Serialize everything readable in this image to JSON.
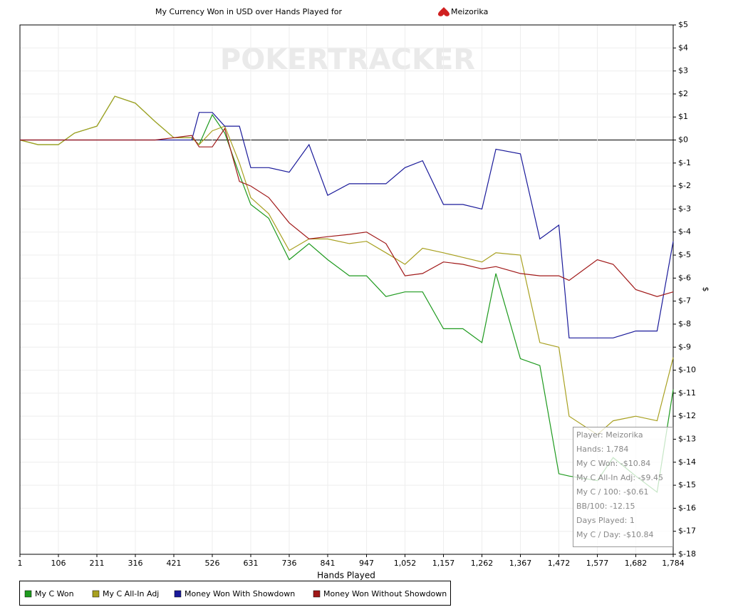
{
  "chart_data": {
    "type": "line",
    "title": "My Currency Won in USD over Hands Played for",
    "title_player": "Meizorika",
    "watermark": "POKERTRACKER",
    "x_label": "Hands Played",
    "y_label": "$",
    "x": [
      1,
      50,
      106,
      150,
      190,
      211,
      260,
      316,
      370,
      421,
      470,
      490,
      526,
      560,
      600,
      631,
      680,
      736,
      790,
      841,
      900,
      947,
      1000,
      1052,
      1100,
      1157,
      1210,
      1262,
      1300,
      1367,
      1420,
      1472,
      1500,
      1577,
      1620,
      1682,
      1740,
      1784
    ],
    "series": [
      {
        "name": "My C Won",
        "color": "#1e9a1e",
        "values": [
          0,
          -0.2,
          -0.2,
          0.3,
          0.5,
          0.6,
          1.9,
          1.6,
          0.8,
          0.1,
          0.1,
          -0.2,
          1.1,
          0.3,
          -1.5,
          -2.8,
          -3.4,
          -5.2,
          -4.5,
          -5.2,
          -5.9,
          -5.9,
          -6.8,
          -6.6,
          -6.6,
          -8.2,
          -8.2,
          -8.8,
          -5.8,
          -9.5,
          -9.8,
          -14.5,
          -14.6,
          -14.8,
          -13.8,
          -14.6,
          -15.3,
          -10.84
        ]
      },
      {
        "name": "My C All-In Adj",
        "color": "#a8a020",
        "values": [
          0,
          -0.2,
          -0.2,
          0.3,
          0.5,
          0.6,
          1.9,
          1.6,
          0.8,
          0.1,
          0.1,
          -0.2,
          0.4,
          0.6,
          -1.0,
          -2.5,
          -3.2,
          -4.8,
          -4.3,
          -4.3,
          -4.5,
          -4.4,
          -4.9,
          -5.4,
          -4.7,
          -4.9,
          -5.1,
          -5.3,
          -4.9,
          -5.0,
          -8.8,
          -9.0,
          -12.0,
          -12.8,
          -12.2,
          -12.0,
          -12.2,
          -9.45
        ]
      },
      {
        "name": "Money Won With Showdown",
        "color": "#1a1a9a",
        "values": [
          0,
          0,
          0,
          0,
          0,
          0,
          0,
          0,
          0,
          0,
          0,
          1.2,
          1.2,
          0.6,
          0.6,
          -1.2,
          -1.2,
          -1.4,
          -0.2,
          -2.4,
          -1.9,
          -1.9,
          -1.9,
          -1.2,
          -0.9,
          -2.8,
          -2.8,
          -3.0,
          -0.4,
          -0.6,
          -4.3,
          -3.7,
          -8.6,
          -8.6,
          -8.6,
          -8.3,
          -8.3,
          -4.4
        ]
      },
      {
        "name": "Money Won Without Showdown",
        "color": "#a01818",
        "values": [
          0,
          0,
          0,
          0,
          0,
          0,
          0,
          0,
          0,
          0.1,
          0.2,
          -0.3,
          -0.3,
          0.5,
          -1.8,
          -2.0,
          -2.5,
          -3.6,
          -4.3,
          -4.2,
          -4.1,
          -4.0,
          -4.5,
          -5.9,
          -5.8,
          -5.3,
          -5.4,
          -5.6,
          -5.5,
          -5.8,
          -5.9,
          -5.9,
          -6.1,
          -5.2,
          -5.4,
          -6.5,
          -6.8,
          -6.6
        ]
      }
    ],
    "xlim": [
      1,
      1784
    ],
    "xticks": [
      1,
      106,
      211,
      316,
      421,
      526,
      631,
      736,
      841,
      947,
      {
        "value": 1052,
        "label": "1,052"
      },
      {
        "value": 1157,
        "label": "1,157"
      },
      {
        "value": 1262,
        "label": "1,262"
      },
      {
        "value": 1367,
        "label": "1,367"
      },
      {
        "value": 1472,
        "label": "1,472"
      },
      {
        "value": 1577,
        "label": "1,577"
      },
      {
        "value": 1682,
        "label": "1,682"
      },
      {
        "value": 1784,
        "label": "1,784"
      }
    ],
    "ylim": [
      -18,
      5
    ],
    "yticks": [
      {
        "value": 5,
        "label": "$5"
      },
      {
        "value": 4,
        "label": "$4"
      },
      {
        "value": 3,
        "label": "$3"
      },
      {
        "value": 2,
        "label": "$2"
      },
      {
        "value": 1,
        "label": "$1"
      },
      {
        "value": 0,
        "label": "$0"
      },
      {
        "value": -1,
        "label": "$-1"
      },
      {
        "value": -2,
        "label": "$-2"
      },
      {
        "value": -3,
        "label": "$-3"
      },
      {
        "value": -4,
        "label": "$-4"
      },
      {
        "value": -5,
        "label": "$-5"
      },
      {
        "value": -6,
        "label": "$-6"
      },
      {
        "value": -7,
        "label": "$-7"
      },
      {
        "value": -8,
        "label": "$-8"
      },
      {
        "value": -9,
        "label": "$-9"
      },
      {
        "value": -10,
        "label": "$-10"
      },
      {
        "value": -11,
        "label": "$-11"
      },
      {
        "value": -12,
        "label": "$-12"
      },
      {
        "value": -13,
        "label": "$-13"
      },
      {
        "value": -14,
        "label": "$-14"
      },
      {
        "value": -15,
        "label": "$-15"
      },
      {
        "value": -16,
        "label": "$-16"
      },
      {
        "value": -17,
        "label": "$-17"
      },
      {
        "value": -18,
        "label": "$-18"
      }
    ],
    "grid": true,
    "tooltip": [
      "Player: Meizorika",
      "Hands: 1,784",
      "My C Won: -$10.84",
      "My C All-In Adj: -$9.45",
      "My C / 100: -$0.61",
      "BB/100: -12.15",
      "Days Played: 1",
      "My C / Day: -$10.84"
    ]
  }
}
